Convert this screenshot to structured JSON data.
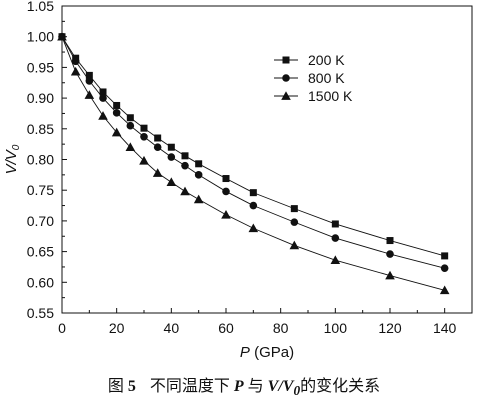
{
  "chart_data": {
    "type": "line",
    "xlabel_symbol": "P",
    "xlabel_unit": " (GPa)",
    "ylabel_main": "V/V",
    "ylabel_sub": "0",
    "xlim": [
      0,
      150
    ],
    "ylim": [
      0.55,
      1.05
    ],
    "xticks": [
      "0",
      "20",
      "40",
      "60",
      "80",
      "100",
      "120",
      "140"
    ],
    "yticks": [
      "0.55",
      "0.60",
      "0.65",
      "0.70",
      "0.75",
      "0.80",
      "0.85",
      "0.90",
      "0.95",
      "1.00",
      "1.05"
    ],
    "grid": false,
    "legend_position": "top-right",
    "x": [
      0,
      5,
      10,
      15,
      20,
      25,
      30,
      35,
      40,
      45,
      50,
      60,
      70,
      85,
      100,
      120,
      140
    ],
    "series": [
      {
        "name": "200 K",
        "marker": "square",
        "values": [
          1.0,
          0.965,
          0.937,
          0.91,
          0.888,
          0.868,
          0.851,
          0.835,
          0.82,
          0.806,
          0.793,
          0.769,
          0.746,
          0.72,
          0.695,
          0.668,
          0.643
        ]
      },
      {
        "name": "800 K",
        "marker": "circle",
        "values": [
          1.0,
          0.96,
          0.928,
          0.9,
          0.876,
          0.855,
          0.837,
          0.82,
          0.804,
          0.79,
          0.775,
          0.748,
          0.725,
          0.698,
          0.672,
          0.646,
          0.623
        ]
      },
      {
        "name": "1500 K",
        "marker": "triangle",
        "values": [
          1.0,
          0.943,
          0.905,
          0.871,
          0.844,
          0.82,
          0.798,
          0.778,
          0.763,
          0.748,
          0.735,
          0.71,
          0.688,
          0.66,
          0.636,
          0.611,
          0.587
        ]
      }
    ]
  },
  "caption": {
    "fig_label": "图",
    "fig_num": "5",
    "text_pre": "不同温度下",
    "symbol_p": "P",
    "text_mid": "与",
    "symbol_v": "V/V",
    "symbol_v_sub": "0",
    "text_post": "的变化关系"
  }
}
